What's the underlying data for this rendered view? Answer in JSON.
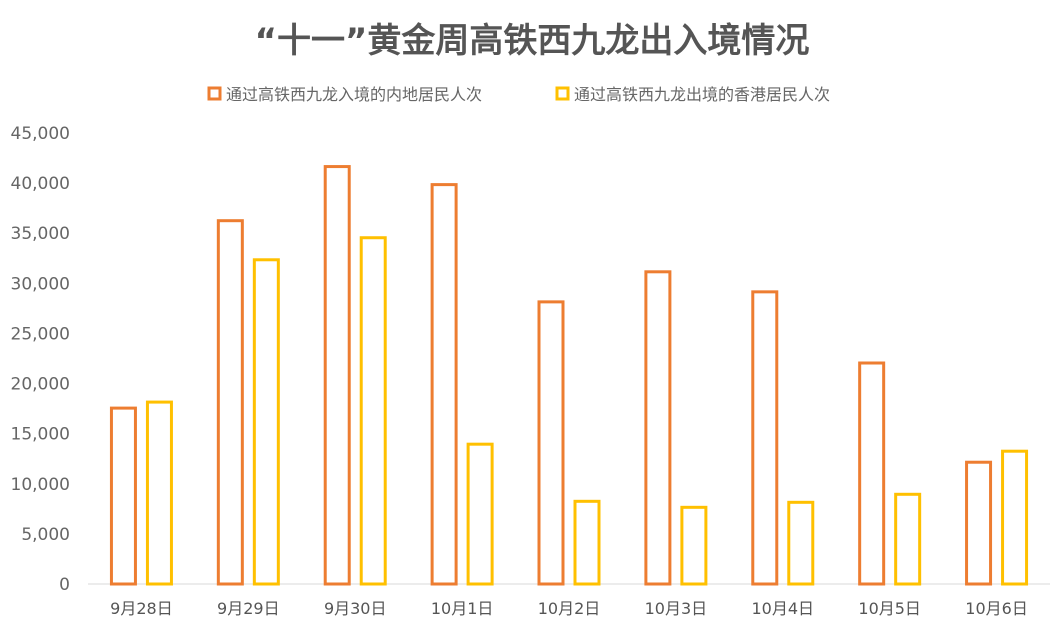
{
  "chart_data": {
    "type": "bar",
    "title": "“十一”黄金周高铁西九龙出入境情况",
    "categories": [
      "9月28日",
      "9月29日",
      "9月30日",
      "10月1日",
      "10月2日",
      "10月3日",
      "10月4日",
      "10月5日",
      "10月6日"
    ],
    "series": [
      {
        "name": "通过高铁西九龙入境的内地居民人次",
        "color": "#ED7D31",
        "values": [
          17700,
          36400,
          41800,
          40000,
          28300,
          31300,
          29300,
          22200,
          12300
        ]
      },
      {
        "name": "通过高铁西九龙出境的香港居民人次",
        "color": "#FFC000",
        "values": [
          18300,
          32500,
          34700,
          14100,
          8400,
          7800,
          8300,
          9100,
          13400
        ]
      }
    ],
    "yticks": [
      "0",
      "5,000",
      "10,000",
      "15,000",
      "20,000",
      "25,000",
      "30,000",
      "35,000",
      "40,000",
      "45,000"
    ],
    "ylim": [
      0,
      45000
    ],
    "grid": false,
    "legend_position": "top"
  }
}
